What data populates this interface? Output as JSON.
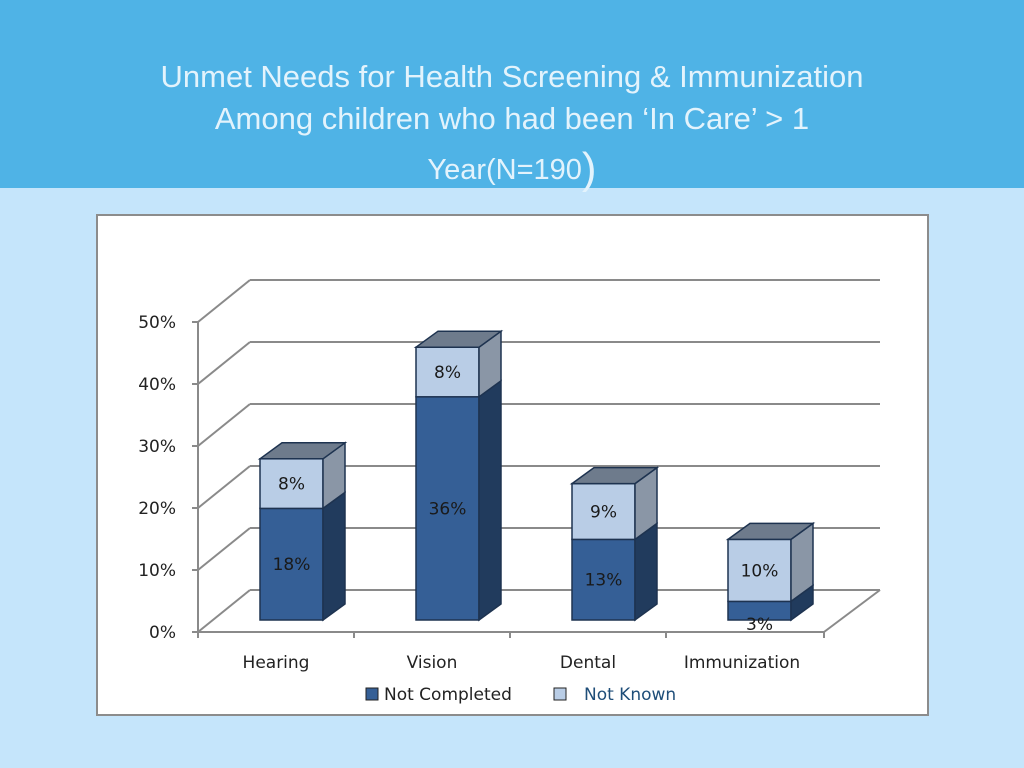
{
  "slide": {
    "title_line1": "Unmet Needs for Health Screening & Immunization",
    "title_line2": "Among children who had been ‘In Care’ > 1",
    "title_line3": "Year(N=190",
    "title_paren": ")"
  },
  "colors": {
    "header_bg": "#4fb3e6",
    "slide_bg": "#c5e5fb",
    "not_completed": "#355f96",
    "not_known": "#b9cde6"
  },
  "chart_data": {
    "type": "bar",
    "stacked": true,
    "three_d": true,
    "categories": [
      "Hearing",
      "Vision",
      "Dental",
      "Immunization"
    ],
    "series": [
      {
        "name": "Not Completed",
        "values": [
          18,
          36,
          13,
          3
        ],
        "labels": [
          "18%",
          "36%",
          "13%",
          "3%"
        ]
      },
      {
        "name": "Not Known",
        "values": [
          8,
          8,
          9,
          10
        ],
        "labels": [
          "8%",
          "8%",
          "9%",
          "10%"
        ]
      }
    ],
    "y_ticks": [
      "0%",
      "10%",
      "20%",
      "30%",
      "40%",
      "50%"
    ],
    "ylim": [
      0,
      50
    ],
    "grid": true,
    "legend": "bottom"
  }
}
